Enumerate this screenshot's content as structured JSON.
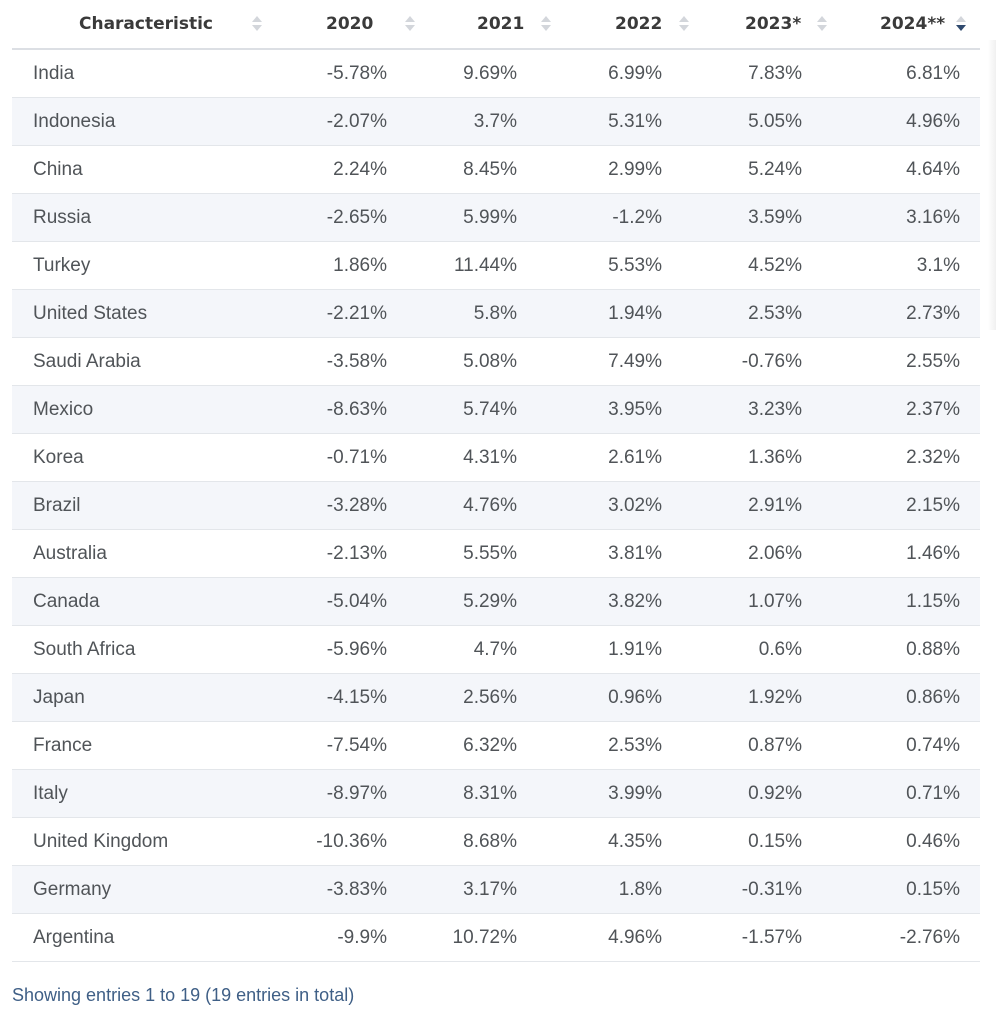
{
  "table": {
    "columns": [
      {
        "label": "Characteristic",
        "sort": "none"
      },
      {
        "label": "2020",
        "sort": "none"
      },
      {
        "label": "2021",
        "sort": "none"
      },
      {
        "label": "2022",
        "sort": "none"
      },
      {
        "label": "2023*",
        "sort": "none"
      },
      {
        "label": "2024**",
        "sort": "desc"
      }
    ],
    "rows": [
      {
        "name": "India",
        "values": [
          "-5.78%",
          "9.69%",
          "6.99%",
          "7.83%",
          "6.81%"
        ]
      },
      {
        "name": "Indonesia",
        "values": [
          "-2.07%",
          "3.7%",
          "5.31%",
          "5.05%",
          "4.96%"
        ]
      },
      {
        "name": "China",
        "values": [
          "2.24%",
          "8.45%",
          "2.99%",
          "5.24%",
          "4.64%"
        ]
      },
      {
        "name": "Russia",
        "values": [
          "-2.65%",
          "5.99%",
          "-1.2%",
          "3.59%",
          "3.16%"
        ]
      },
      {
        "name": "Turkey",
        "values": [
          "1.86%",
          "11.44%",
          "5.53%",
          "4.52%",
          "3.1%"
        ]
      },
      {
        "name": "United States",
        "values": [
          "-2.21%",
          "5.8%",
          "1.94%",
          "2.53%",
          "2.73%"
        ]
      },
      {
        "name": "Saudi Arabia",
        "values": [
          "-3.58%",
          "5.08%",
          "7.49%",
          "-0.76%",
          "2.55%"
        ]
      },
      {
        "name": "Mexico",
        "values": [
          "-8.63%",
          "5.74%",
          "3.95%",
          "3.23%",
          "2.37%"
        ]
      },
      {
        "name": "Korea",
        "values": [
          "-0.71%",
          "4.31%",
          "2.61%",
          "1.36%",
          "2.32%"
        ]
      },
      {
        "name": "Brazil",
        "values": [
          "-3.28%",
          "4.76%",
          "3.02%",
          "2.91%",
          "2.15%"
        ]
      },
      {
        "name": "Australia",
        "values": [
          "-2.13%",
          "5.55%",
          "3.81%",
          "2.06%",
          "1.46%"
        ]
      },
      {
        "name": "Canada",
        "values": [
          "-5.04%",
          "5.29%",
          "3.82%",
          "1.07%",
          "1.15%"
        ]
      },
      {
        "name": "South Africa",
        "values": [
          "-5.96%",
          "4.7%",
          "1.91%",
          "0.6%",
          "0.88%"
        ]
      },
      {
        "name": "Japan",
        "values": [
          "-4.15%",
          "2.56%",
          "0.96%",
          "1.92%",
          "0.86%"
        ]
      },
      {
        "name": "France",
        "values": [
          "-7.54%",
          "6.32%",
          "2.53%",
          "0.87%",
          "0.74%"
        ]
      },
      {
        "name": "Italy",
        "values": [
          "-8.97%",
          "8.31%",
          "3.99%",
          "0.92%",
          "0.71%"
        ]
      },
      {
        "name": "United Kingdom",
        "values": [
          "-10.36%",
          "8.68%",
          "4.35%",
          "0.15%",
          "0.46%"
        ]
      },
      {
        "name": "Germany",
        "values": [
          "-3.83%",
          "3.17%",
          "1.8%",
          "-0.31%",
          "0.15%"
        ]
      },
      {
        "name": "Argentina",
        "values": [
          "-9.9%",
          "10.72%",
          "4.96%",
          "-1.57%",
          "-2.76%"
        ]
      }
    ]
  },
  "footer": {
    "text": "Showing entries 1 to 19 (19 entries in total)"
  },
  "colors": {
    "header_text": "#3a3a3a",
    "cell_text": "#505458",
    "stripe_bg": "#f4f6fa",
    "row_border": "#e3e6ea",
    "sort_active": "#2f4a6e",
    "sort_inactive": "#d3d6db",
    "footer_text": "#3f5f86"
  },
  "icons": {
    "sort": "sort-arrows-icon",
    "sort_desc": "sort-descending-icon"
  }
}
